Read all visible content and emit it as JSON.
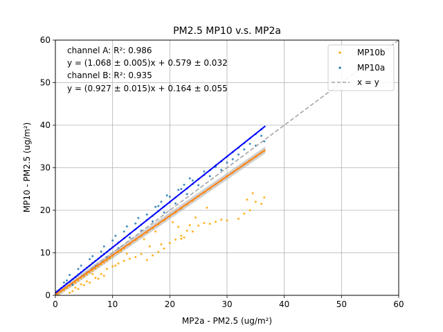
{
  "chart_data": {
    "type": "scatter",
    "title": "PM2.5 MP10 v.s. MP2a",
    "xlabel": "MP2a - PM2.5 (ug/m²)",
    "ylabel": "MP10 - PM2.5 (ug/m²)",
    "xlim": [
      0,
      60
    ],
    "ylim": [
      0,
      60
    ],
    "xticks": [
      "0",
      "10",
      "20",
      "30",
      "40",
      "50",
      "60"
    ],
    "yticks": [
      "0",
      "10",
      "20",
      "30",
      "40",
      "50",
      "60"
    ],
    "grid": true,
    "legend_position": "top-right",
    "annotations": [
      "channel A: R²: 0.986",
      "y = (1.068 ± 0.005)x + 0.579 ± 0.032",
      "channel B: R²: 0.935",
      "y = (0.927 ± 0.015)x + 0.164 ± 0.055"
    ],
    "series": [
      {
        "name": "MP10b",
        "kind": "scatter",
        "color": "#ffa500",
        "points": [
          [
            0.5,
            0.3
          ],
          [
            1.0,
            0.8
          ],
          [
            1.5,
            1.2
          ],
          [
            2.0,
            1.7
          ],
          [
            2.5,
            2.2
          ],
          [
            3.0,
            2.5
          ],
          [
            3.5,
            2.9
          ],
          [
            4.0,
            3.5
          ],
          [
            4.5,
            4.0
          ],
          [
            5.0,
            4.4
          ],
          [
            5.5,
            4.9
          ],
          [
            6.0,
            5.4
          ],
          [
            6.5,
            5.8
          ],
          [
            7.0,
            6.3
          ],
          [
            7.5,
            6.8
          ],
          [
            8.0,
            7.3
          ],
          [
            8.5,
            7.7
          ],
          [
            9.0,
            8.2
          ],
          [
            9.5,
            8.7
          ],
          [
            10.0,
            9.2
          ],
          [
            11.0,
            10.1
          ],
          [
            12.0,
            11.1
          ],
          [
            13.0,
            12.0
          ],
          [
            14.0,
            13.0
          ],
          [
            15.0,
            13.9
          ],
          [
            16.0,
            14.8
          ],
          [
            17.0,
            15.8
          ],
          [
            18.0,
            16.7
          ],
          [
            19.0,
            17.6
          ],
          [
            20.0,
            18.6
          ],
          [
            21.0,
            19.5
          ],
          [
            22.0,
            20.4
          ],
          [
            23.0,
            21.4
          ],
          [
            24.0,
            22.3
          ],
          [
            25.0,
            23.3
          ],
          [
            26.0,
            24.2
          ],
          [
            27.0,
            25.1
          ],
          [
            28.0,
            26.1
          ],
          [
            29.0,
            27.0
          ],
          [
            30.0,
            28.0
          ],
          [
            31.0,
            28.9
          ],
          [
            32.0,
            29.8
          ],
          [
            33.0,
            30.8
          ],
          [
            34.0,
            31.7
          ],
          [
            35.0,
            32.6
          ],
          [
            36.0,
            33.6
          ],
          [
            36.5,
            34.0
          ],
          [
            3.0,
            1.0
          ],
          [
            4.0,
            1.5
          ],
          [
            5.0,
            2.4
          ],
          [
            6.0,
            3.0
          ],
          [
            7.0,
            4.1
          ],
          [
            8.0,
            5.0
          ],
          [
            9.0,
            6.2
          ],
          [
            10.0,
            6.8
          ],
          [
            11.0,
            7.5
          ],
          [
            12.0,
            8.1
          ],
          [
            13.0,
            8.6
          ],
          [
            14.0,
            9.0
          ],
          [
            15.0,
            9.7
          ],
          [
            16.0,
            8.3
          ],
          [
            17.0,
            9.4
          ],
          [
            18.0,
            10.2
          ],
          [
            19.0,
            11.0
          ],
          [
            20.0,
            12.3
          ],
          [
            21.0,
            13.1
          ],
          [
            22.0,
            14.0
          ],
          [
            23.0,
            15.2
          ],
          [
            24.0,
            15.0
          ],
          [
            25.0,
            16.4
          ],
          [
            26.0,
            17.0
          ],
          [
            27.0,
            16.8
          ],
          [
            28.0,
            17.3
          ],
          [
            30.0,
            17.6
          ],
          [
            32.0,
            18.0
          ],
          [
            33.0,
            19.2
          ],
          [
            34.0,
            20.0
          ],
          [
            35.0,
            22.0
          ],
          [
            36.0,
            21.5
          ],
          [
            36.5,
            23.0
          ],
          [
            34.5,
            24.0
          ],
          [
            33.5,
            22.5
          ],
          [
            29.0,
            17.8
          ],
          [
            20.5,
            17.2
          ],
          [
            21.5,
            16.1
          ],
          [
            22.5,
            13.6
          ],
          [
            18.5,
            12.0
          ],
          [
            17.5,
            15.0
          ],
          [
            16.5,
            11.5
          ],
          [
            15.5,
            13.2
          ],
          [
            12.5,
            9.8
          ],
          [
            11.5,
            10.4
          ],
          [
            10.5,
            7.0
          ],
          [
            9.5,
            8.9
          ],
          [
            8.5,
            4.6
          ],
          [
            7.5,
            3.9
          ],
          [
            6.5,
            5.0
          ],
          [
            5.5,
            3.3
          ],
          [
            4.5,
            2.6
          ],
          [
            3.5,
            1.8
          ],
          [
            2.5,
            0.6
          ],
          [
            24.5,
            18.3
          ],
          [
            23.5,
            16.5
          ],
          [
            26.5,
            20.6
          ],
          [
            22.0,
            13.3
          ]
        ]
      },
      {
        "name": "MP10a",
        "kind": "scatter",
        "color": "#1f77b4",
        "points": [
          [
            0.3,
            0.8
          ],
          [
            0.6,
            1.2
          ],
          [
            1.0,
            1.7
          ],
          [
            1.5,
            2.2
          ],
          [
            2.0,
            2.8
          ],
          [
            2.5,
            3.2
          ],
          [
            3.0,
            3.8
          ],
          [
            3.5,
            4.3
          ],
          [
            4.0,
            4.9
          ],
          [
            4.5,
            5.4
          ],
          [
            5.0,
            6.0
          ],
          [
            5.5,
            6.5
          ],
          [
            6.0,
            7.0
          ],
          [
            6.5,
            7.6
          ],
          [
            7.0,
            8.1
          ],
          [
            7.5,
            8.6
          ],
          [
            8.0,
            9.2
          ],
          [
            8.5,
            9.7
          ],
          [
            9.0,
            10.2
          ],
          [
            9.5,
            10.8
          ],
          [
            10.0,
            11.3
          ],
          [
            11.0,
            12.4
          ],
          [
            12.0,
            13.4
          ],
          [
            13.0,
            14.5
          ],
          [
            14.0,
            15.5
          ],
          [
            15.0,
            16.6
          ],
          [
            16.0,
            17.7
          ],
          [
            17.0,
            18.7
          ],
          [
            18.0,
            19.8
          ],
          [
            19.0,
            20.9
          ],
          [
            20.0,
            21.9
          ],
          [
            21.0,
            23.0
          ],
          [
            22.0,
            24.1
          ],
          [
            23.0,
            25.1
          ],
          [
            24.0,
            26.2
          ],
          [
            25.0,
            27.3
          ],
          [
            26.0,
            28.3
          ],
          [
            27.0,
            29.4
          ],
          [
            28.0,
            30.5
          ],
          [
            29.0,
            31.5
          ],
          [
            30.0,
            32.6
          ],
          [
            31.0,
            33.7
          ],
          [
            32.0,
            34.7
          ],
          [
            33.0,
            35.8
          ],
          [
            34.0,
            36.9
          ],
          [
            35.0,
            37.9
          ],
          [
            36.0,
            39.0
          ],
          [
            2.0,
            3.5
          ],
          [
            3.0,
            2.5
          ],
          [
            4.0,
            6.2
          ],
          [
            5.0,
            4.8
          ],
          [
            6.0,
            8.5
          ],
          [
            7.0,
            6.9
          ],
          [
            8.0,
            10.3
          ],
          [
            9.0,
            9.0
          ],
          [
            10.0,
            12.9
          ],
          [
            11.0,
            11.1
          ],
          [
            12.0,
            15.0
          ],
          [
            13.0,
            13.6
          ],
          [
            14.0,
            16.9
          ],
          [
            15.0,
            15.2
          ],
          [
            16.0,
            19.0
          ],
          [
            17.0,
            17.4
          ],
          [
            18.0,
            21.0
          ],
          [
            19.0,
            19.5
          ],
          [
            20.0,
            23.2
          ],
          [
            21.0,
            21.6
          ],
          [
            22.0,
            25.0
          ],
          [
            23.0,
            23.8
          ],
          [
            24.0,
            27.0
          ],
          [
            25.0,
            25.9
          ],
          [
            26.0,
            29.1
          ],
          [
            27.0,
            28.0
          ],
          [
            28.0,
            30.2
          ],
          [
            29.0,
            29.5
          ],
          [
            30.0,
            31.2
          ],
          [
            31.0,
            32.0
          ],
          [
            32.0,
            33.1
          ],
          [
            33.0,
            34.3
          ],
          [
            34.0,
            35.6
          ],
          [
            35.0,
            35.2
          ],
          [
            36.0,
            37.5
          ],
          [
            36.5,
            36.2
          ],
          [
            18.5,
            22.0
          ],
          [
            17.5,
            20.8
          ],
          [
            19.5,
            23.5
          ],
          [
            21.5,
            24.8
          ],
          [
            22.5,
            26.0
          ],
          [
            23.5,
            27.5
          ],
          [
            12.5,
            16.2
          ],
          [
            8.5,
            11.5
          ],
          [
            6.5,
            9.2
          ],
          [
            4.5,
            7.0
          ],
          [
            2.5,
            4.8
          ],
          [
            1.5,
            3.0
          ],
          [
            10.5,
            14.0
          ],
          [
            14.5,
            18.2
          ]
        ]
      },
      {
        "name": "x = y",
        "kind": "line",
        "color": "#a0a0a0",
        "dash": true,
        "x": [
          0,
          60
        ],
        "y": [
          0,
          60
        ]
      },
      {
        "name": "",
        "kind": "fit-band",
        "color": "#a9a9a9",
        "x": [
          0,
          36.7
        ],
        "slope": 0.927,
        "intercept": 0.164,
        "spread": 0.8
      },
      {
        "name": "",
        "kind": "line",
        "color": "#ff7f0e",
        "x": [
          0,
          36.7
        ],
        "y": [
          0.164,
          34.2
        ]
      },
      {
        "name": "",
        "kind": "line",
        "color": "#0000ff",
        "x": [
          0,
          36.7
        ],
        "y": [
          0.579,
          39.8
        ]
      }
    ]
  }
}
